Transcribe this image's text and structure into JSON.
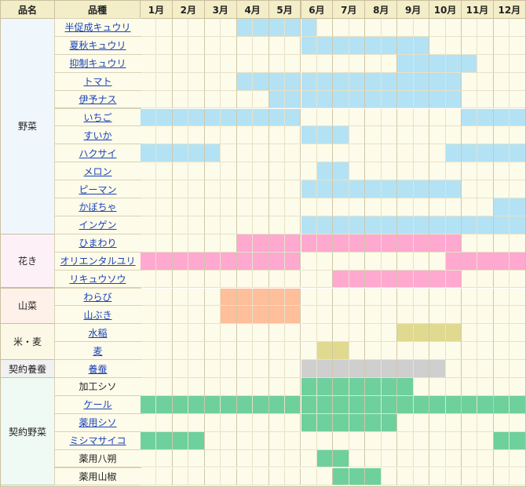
{
  "header": {
    "category": "品名",
    "variety": "品種",
    "months": [
      "1月",
      "2月",
      "3月",
      "4月",
      "5月",
      "6月",
      "7月",
      "8月",
      "9月",
      "10月",
      "11月",
      "12月"
    ]
  },
  "colors": {
    "header_bg": "#f3edc8",
    "base_cell": "#fdfbe9",
    "vegetable": "#b3e2f5",
    "flower": "#ffa8d0",
    "wild_vegetable": "#ffbf9a",
    "grain": "#e0d990",
    "silkworm": "#cfcfcf",
    "contract": "#6ed09d"
  },
  "categories": [
    {
      "label": "野菜",
      "start": 0,
      "count": 12,
      "bg": "#f0f7fc"
    },
    {
      "label": "花き",
      "start": 12,
      "count": 3,
      "bg": "#fdf0f6"
    },
    {
      "label": "山菜",
      "start": 15,
      "count": 2,
      "bg": "#fdf1ea"
    },
    {
      "label": "米・麦",
      "start": 17,
      "count": 2,
      "bg": "#fbf9e6"
    },
    {
      "label": "契約養蚕",
      "start": 19,
      "count": 1,
      "bg": "#f1f1f1"
    },
    {
      "label": "契約野菜",
      "start": 20,
      "count": 6,
      "bg": "#eefaf3"
    }
  ],
  "rows": [
    {
      "name": "半促成キュウリ",
      "link": true,
      "color": "vegetable",
      "periods": [
        [
          4,
          6.5
        ]
      ]
    },
    {
      "name": "夏秋キュウリ",
      "link": true,
      "color": "vegetable",
      "periods": [
        [
          6,
          10
        ]
      ]
    },
    {
      "name": "抑制キュウリ",
      "link": true,
      "color": "vegetable",
      "periods": [
        [
          9,
          11.5
        ]
      ]
    },
    {
      "name": "トマト",
      "link": true,
      "color": "vegetable",
      "periods": [
        [
          4,
          11
        ]
      ]
    },
    {
      "name": "伊予ナス",
      "link": true,
      "color": "vegetable",
      "periods": [
        [
          5,
          11
        ]
      ]
    },
    {
      "name": "いちご",
      "link": true,
      "color": "vegetable",
      "periods": [
        [
          1,
          6
        ],
        [
          11,
          13
        ]
      ]
    },
    {
      "name": "すいか",
      "link": true,
      "color": "vegetable",
      "periods": [
        [
          6,
          7.5
        ]
      ]
    },
    {
      "name": "ハクサイ",
      "link": true,
      "color": "vegetable",
      "periods": [
        [
          1,
          3.5
        ],
        [
          10.5,
          13
        ]
      ]
    },
    {
      "name": "メロン",
      "link": true,
      "color": "vegetable",
      "periods": [
        [
          6.5,
          7.5
        ]
      ]
    },
    {
      "name": "ピーマン",
      "link": true,
      "color": "vegetable",
      "periods": [
        [
          6,
          11
        ]
      ]
    },
    {
      "name": "かぼちゃ",
      "link": true,
      "color": "vegetable",
      "periods": [
        [
          12,
          13
        ]
      ]
    },
    {
      "name": "インゲン",
      "link": true,
      "color": "vegetable",
      "periods": [
        [
          6,
          13
        ]
      ]
    },
    {
      "name": "ひまわり",
      "link": true,
      "color": "flower",
      "periods": [
        [
          4,
          11
        ]
      ]
    },
    {
      "name": "オリエンタルユリ",
      "link": true,
      "color": "flower",
      "periods": [
        [
          1,
          6
        ],
        [
          10.5,
          13
        ]
      ]
    },
    {
      "name": "リキュウソウ",
      "link": true,
      "color": "flower",
      "periods": [
        [
          7,
          11
        ]
      ]
    },
    {
      "name": "わらび",
      "link": true,
      "color": "wild_vegetable",
      "periods": [
        [
          3.5,
          6
        ]
      ]
    },
    {
      "name": "山ぶき",
      "link": true,
      "color": "wild_vegetable",
      "periods": [
        [
          3.5,
          6
        ]
      ]
    },
    {
      "name": "水稲",
      "link": true,
      "color": "grain",
      "periods": [
        [
          9,
          11
        ]
      ]
    },
    {
      "name": "麦",
      "link": true,
      "color": "grain",
      "periods": [
        [
          6.5,
          7.5
        ]
      ]
    },
    {
      "name": "養蚕",
      "link": true,
      "color": "silkworm",
      "periods": [
        [
          6,
          10.5
        ]
      ]
    },
    {
      "name": "加工シソ",
      "link": false,
      "color": "contract",
      "periods": [
        [
          6,
          9.5
        ]
      ]
    },
    {
      "name": "ケール",
      "link": true,
      "color": "contract",
      "periods": [
        [
          1,
          13
        ]
      ]
    },
    {
      "name": "薬用シソ",
      "link": true,
      "color": "contract",
      "periods": [
        [
          6,
          9
        ]
      ]
    },
    {
      "name": "ミシマサイコ",
      "link": true,
      "color": "contract",
      "periods": [
        [
          1,
          3
        ],
        [
          12,
          13
        ]
      ]
    },
    {
      "name": "薬用八朔",
      "link": false,
      "color": "contract",
      "periods": [
        [
          6.5,
          7.5
        ]
      ]
    },
    {
      "name": "薬用山椒",
      "link": false,
      "color": "contract",
      "periods": [
        [
          7,
          8.5
        ]
      ]
    }
  ]
}
